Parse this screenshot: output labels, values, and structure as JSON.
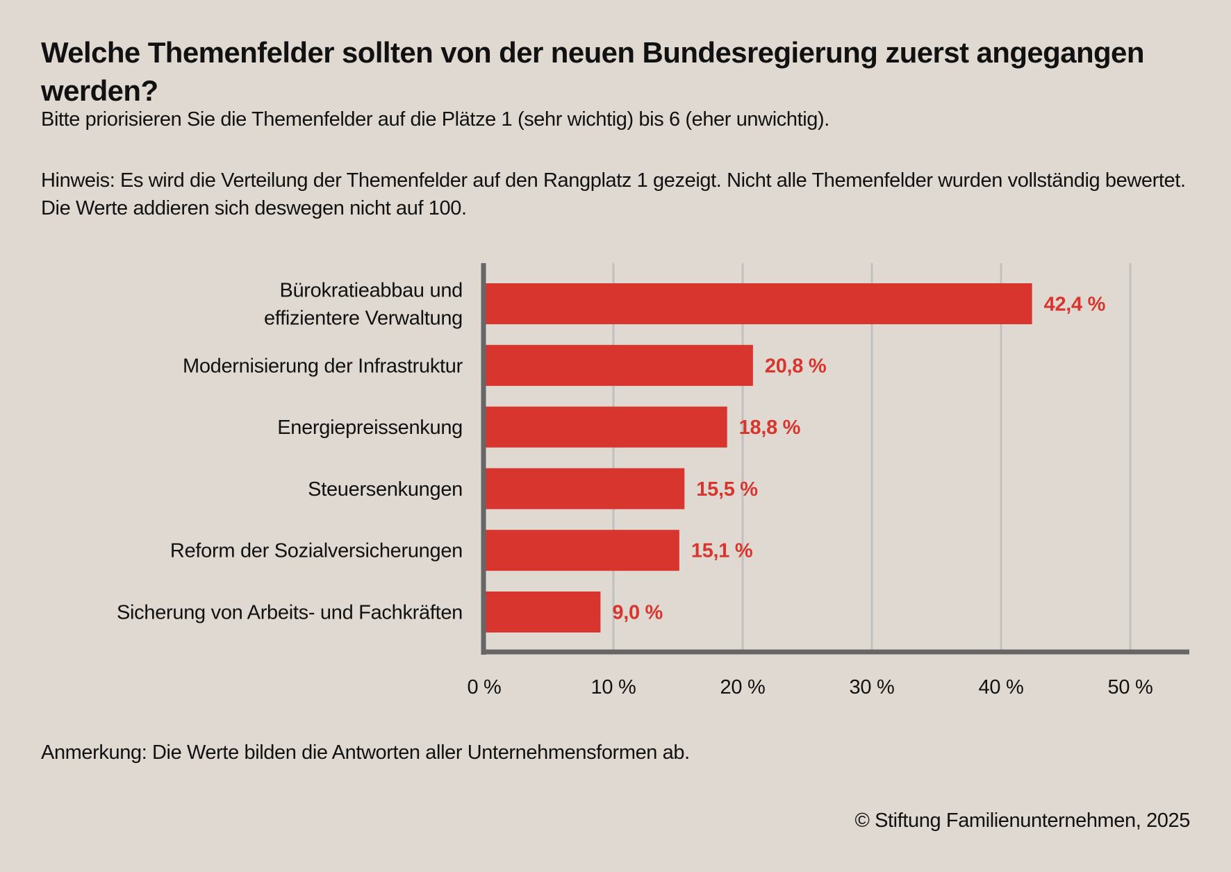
{
  "chart_data": {
    "type": "bar",
    "orientation": "horizontal",
    "title": "Welche Themenfelder sollten von der neuen Bundesregierung zuerst angegangen werden?",
    "subtitle": "Bitte priorisieren Sie die Themenfelder auf die Plätze 1 (sehr wichtig) bis 6 (eher unwichtig).",
    "note": "Hinweis: Es wird die Verteilung der Themenfelder auf den Rangplatz 1 gezeigt. Nicht alle Themenfelder wurden vollständig bewertet. Die Werte addieren sich deswegen nicht auf 100.",
    "categories": [
      [
        "Bürokratieabbau und",
        "effizientere Verwaltung"
      ],
      [
        "Modernisierung der Infrastruktur"
      ],
      [
        "Energiepreissenkung"
      ],
      [
        "Steuersenkungen"
      ],
      [
        "Reform der Sozialversicherungen"
      ],
      [
        "Sicherung von Arbeits- und Fachkräften"
      ]
    ],
    "values": [
      42.4,
      20.8,
      18.8,
      15.5,
      15.1,
      9.0
    ],
    "value_labels": [
      "42,4 %",
      "20,8 %",
      "18,8 %",
      "15,5 %",
      "15,1 %",
      "9,0 %"
    ],
    "xlim": [
      0,
      55
    ],
    "xticks": [
      0,
      10,
      20,
      30,
      40,
      50
    ],
    "xtick_labels": [
      "0 %",
      "10 %",
      "20 %",
      "30 %",
      "40 %",
      "50 %"
    ],
    "xlabel": "",
    "ylabel": "",
    "grid": "vertical",
    "legend": "none",
    "colors": {
      "bar": "#d7352d",
      "value_label": "#d7352d",
      "grid": "#c2c0bd",
      "axis": "#666666",
      "background": "#e0d9d1"
    }
  },
  "footnote": "Anmerkung: Die Werte bilden die Antworten aller Unternehmensformen ab.",
  "copyright": "© Stiftung Familienunternehmen, 2025"
}
